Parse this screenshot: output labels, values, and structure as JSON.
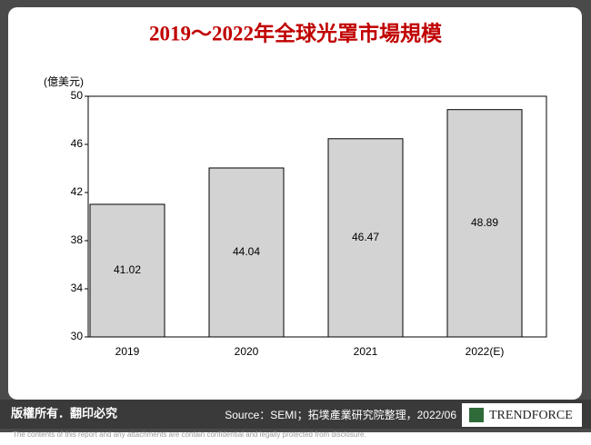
{
  "chart_data": {
    "type": "bar",
    "title": "2019～2022年全球光罩市場規模",
    "y_label": "(億美元)",
    "categories": [
      "2019",
      "2020",
      "2021",
      "2022(E)"
    ],
    "values": [
      41.02,
      44.04,
      46.47,
      48.89
    ],
    "color": "#d3d3d3",
    "ylim": [
      30,
      50
    ],
    "yticks": [
      30,
      34,
      38,
      42,
      46,
      50
    ],
    "grid": false
  },
  "footer": {
    "copyright": "版權所有．翻印必究",
    "source": "Source：SEMI；拓墣產業研究院整理，2022/06",
    "logo": "TRENDFORCE",
    "disclaimer": "The contents of this report and any attachments are contain confidential and legally protected from disclosure."
  }
}
